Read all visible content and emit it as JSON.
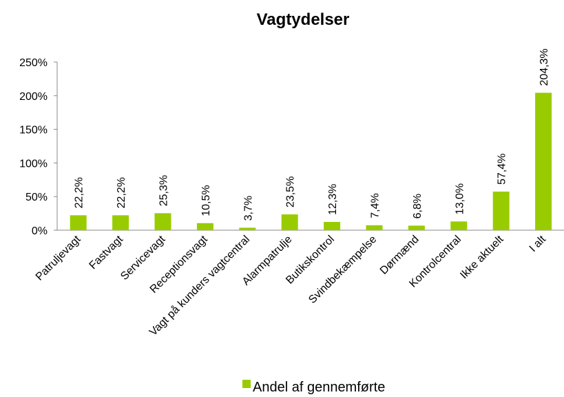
{
  "chart_data": {
    "type": "bar",
    "title": "Vagtydelser",
    "categories": [
      "Patruljevagt",
      "Fastvagt",
      "Servicevagt",
      "Receptionsvagt",
      "Vagt på kunders vagtcentral",
      "Alarmpatrulje",
      "Butikskontrol",
      "Svindbekæmpelse",
      "Dørmænd",
      "Kontrolcentral",
      "Ikke aktuelt",
      "I alt"
    ],
    "series": [
      {
        "name": "Andel af gennemførte",
        "color": "#99cc00",
        "values": [
          22.2,
          22.2,
          25.3,
          10.5,
          3.7,
          23.5,
          12.3,
          7.4,
          6.8,
          13.0,
          57.4,
          204.3
        ],
        "value_labels": [
          "22,2%",
          "22,2%",
          "25,3%",
          "10,5%",
          "3,7%",
          "23,5%",
          "12,3%",
          "7,4%",
          "6,8%",
          "13,0%",
          "57,4%",
          "204,3%"
        ]
      }
    ],
    "ylim": [
      0,
      250
    ],
    "yticks": [
      {
        "value": 0,
        "label": "0%"
      },
      {
        "value": 50,
        "label": "50%"
      },
      {
        "value": 100,
        "label": "100%"
      },
      {
        "value": 150,
        "label": "150%"
      },
      {
        "value": 200,
        "label": "200%"
      },
      {
        "value": 250,
        "label": "250%"
      }
    ],
    "grid": false,
    "legend": "bottom"
  }
}
